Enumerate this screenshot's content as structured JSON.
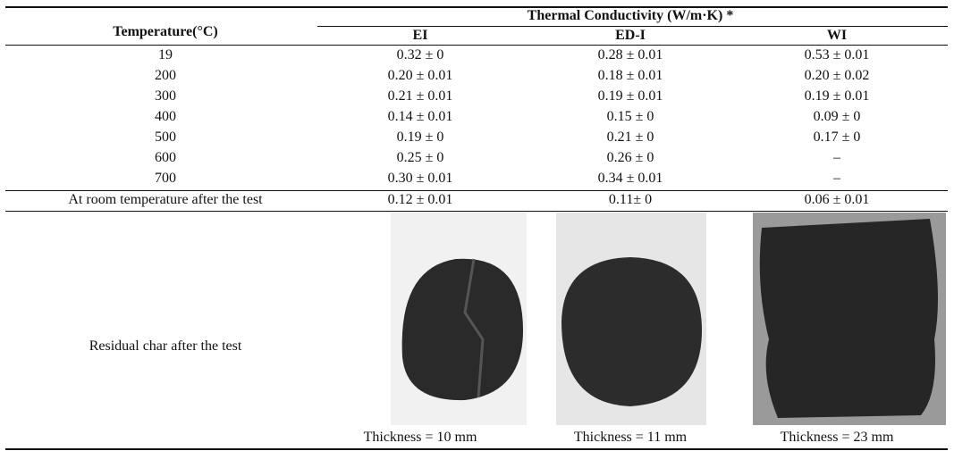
{
  "table": {
    "header": {
      "row_label": "Temperature(°C)",
      "group": "Thermal Conductivity (W/m·K) *",
      "columns": [
        "EI",
        "ED-I",
        "WI"
      ]
    },
    "rows": [
      [
        "19",
        "0.32 ± 0",
        "0.28 ± 0.01",
        "0.53 ± 0.01"
      ],
      [
        "200",
        "0.20 ± 0.01",
        "0.18 ± 0.01",
        "0.20 ± 0.02"
      ],
      [
        "300",
        "0.21 ± 0.01",
        "0.19 ± 0.01",
        "0.19 ± 0.01"
      ],
      [
        "400",
        "0.14 ± 0.01",
        "0.15 ± 0",
        "0.09 ± 0"
      ],
      [
        "500",
        "0.19 ± 0",
        "0.21 ± 0",
        "0.17 ± 0"
      ],
      [
        "600",
        "0.25 ± 0",
        "0.26 ± 0",
        "–"
      ],
      [
        "700",
        "0.30 ± 0.01",
        "0.34 ± 0.01",
        "–"
      ],
      [
        "At room temperature after the test",
        "0.12 ± 0.01",
        "0.11± 0",
        "0.06 ± 0.01"
      ]
    ],
    "residual": {
      "label": "Residual char after the test",
      "captions": [
        "Thickness = 10 mm",
        "Thickness = 11 mm",
        "Thickness = 23 mm"
      ]
    }
  }
}
